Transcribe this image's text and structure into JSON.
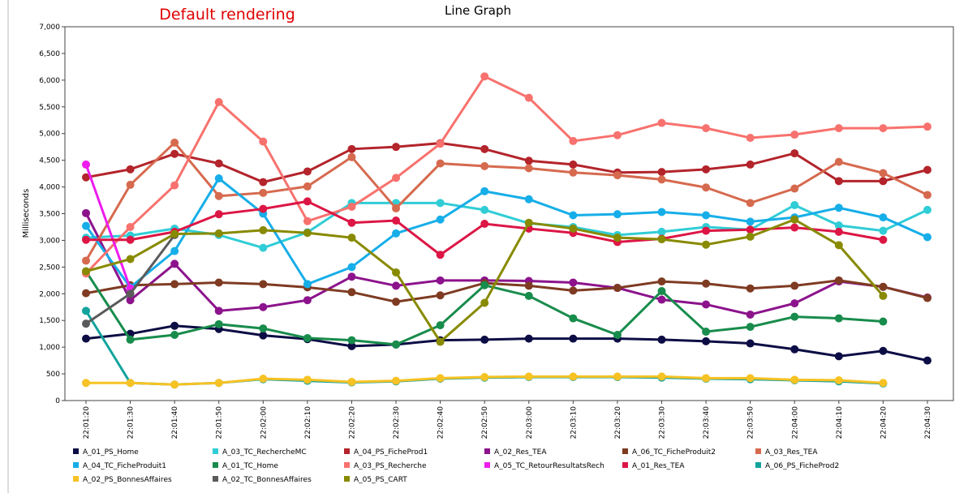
{
  "chart_data": {
    "type": "line",
    "title": "Line Graph",
    "annotation": "Default rendering",
    "y_label": "Milliseconds",
    "categories": [
      "22:01:20",
      "22:01:30",
      "22:01:40",
      "22:01:50",
      "22:02:00",
      "22:02:10",
      "22:02:20",
      "22:02:30",
      "22:02:40",
      "22:02:50",
      "22:03:00",
      "22:03:10",
      "22:03:20",
      "22:03:30",
      "22:03:40",
      "22:03:50",
      "22:04:00",
      "22:04:10",
      "22:04:20",
      "22:04:30"
    ],
    "ylim": [
      0,
      7000
    ],
    "yticks": [
      0,
      500,
      {
        "value": 1000,
        "label": "1,000"
      },
      {
        "value": 1500,
        "label": "1,500"
      },
      {
        "value": 2000,
        "label": "2,000"
      },
      {
        "value": 2500,
        "label": "2,500"
      },
      {
        "value": 3000,
        "label": "3,000"
      },
      {
        "value": 3500,
        "label": "3,500"
      },
      {
        "value": 4000,
        "label": "4,000"
      },
      {
        "value": 4500,
        "label": "4,500"
      },
      {
        "value": 5000,
        "label": "5,000"
      },
      {
        "value": 5500,
        "label": "5,500"
      },
      {
        "value": 6000,
        "label": "6,000"
      },
      {
        "value": 6500,
        "label": "6,500"
      },
      {
        "value": 7000,
        "label": "7,000"
      }
    ],
    "grid": false,
    "series": [
      {
        "name": "A_01_PS_Home",
        "color": "#0d0d45",
        "values": [
          1160,
          1250,
          1400,
          1340,
          1220,
          1150,
          1020,
          1050,
          1130,
          1140,
          1160,
          1160,
          1160,
          1140,
          1110,
          1070,
          960,
          830,
          930,
          750
        ]
      },
      {
        "name": "A_03_TC_RechercheMC",
        "color": "#30cdd6",
        "values": [
          3050,
          3090,
          3220,
          3100,
          2860,
          3150,
          3700,
          3700,
          3700,
          3570,
          3320,
          3250,
          3100,
          3160,
          3250,
          3200,
          3660,
          3280,
          3180,
          3570
        ]
      },
      {
        "name": "A_04_PS_FicheProd1",
        "color": "#b3242b",
        "values": [
          4180,
          4330,
          4620,
          4440,
          4090,
          4290,
          4710,
          4750,
          4820,
          4710,
          4490,
          4420,
          4270,
          4280,
          4330,
          4420,
          4630,
          4110,
          4110,
          4320
        ]
      },
      {
        "name": "A_02_Res_TEA",
        "color": "#8c138c",
        "values": [
          3510,
          1880,
          2560,
          1680,
          1750,
          1880,
          2320,
          2150,
          2250,
          2250,
          2240,
          2210,
          2110,
          1890,
          1800,
          1610,
          1820,
          2230,
          2130,
          1930
        ]
      },
      {
        "name": "A_06_TC_FicheProduit2",
        "color": "#7e3b22",
        "values": [
          2010,
          2160,
          2180,
          2210,
          2180,
          2120,
          2030,
          1850,
          1970,
          2200,
          2150,
          2060,
          2110,
          2230,
          2190,
          2100,
          2150,
          2250,
          2130,
          1920
        ]
      },
      {
        "name": "A_03_Res_TEA",
        "color": "#d66a4f",
        "values": [
          2620,
          4040,
          4830,
          3830,
          3890,
          4010,
          4560,
          3600,
          4440,
          4390,
          4350,
          4270,
          4220,
          4140,
          3990,
          3700,
          3970,
          4470,
          4260,
          3850
        ]
      },
      {
        "name": "A_04_TC_FicheProduit1",
        "color": "#16aee8",
        "values": [
          3270,
          2120,
          2800,
          4160,
          3500,
          2180,
          2500,
          3130,
          3390,
          3920,
          3770,
          3470,
          3490,
          3530,
          3470,
          3350,
          3430,
          3610,
          3430,
          3060
        ]
      },
      {
        "name": "A_01_TC_Home",
        "color": "#188c4c",
        "values": [
          2420,
          1140,
          1230,
          1430,
          1350,
          1170,
          1130,
          1050,
          1410,
          2160,
          1960,
          1540,
          1230,
          2050,
          1290,
          1380,
          1570,
          1540,
          1480,
          null
        ]
      },
      {
        "name": "A_03_PS_Recherche",
        "color": "#f7726e",
        "values": [
          2380,
          3250,
          4030,
          5590,
          4850,
          3360,
          3630,
          4170,
          4810,
          6070,
          5670,
          4860,
          4970,
          5200,
          5100,
          4920,
          4980,
          5100,
          5100,
          5130
        ]
      },
      {
        "name": "A_05_TC_RetourResultatsRech",
        "color": "#ee1cee",
        "values": [
          4420,
          2100,
          null,
          null,
          null,
          null,
          null,
          null,
          null,
          null,
          null,
          null,
          null,
          null,
          null,
          null,
          null,
          null,
          null,
          null
        ]
      },
      {
        "name": "A_01_Res_TEA",
        "color": "#dc1645",
        "values": [
          3010,
          3010,
          3160,
          3490,
          3590,
          3730,
          3330,
          3370,
          2730,
          3310,
          3220,
          3140,
          2970,
          3030,
          3180,
          3200,
          3240,
          3160,
          3010,
          null
        ]
      },
      {
        "name": "A_06_PS_FicheProd2",
        "color": "#12a39c",
        "values": [
          1680,
          330,
          300,
          330,
          400,
          370,
          340,
          360,
          410,
          430,
          440,
          440,
          440,
          430,
          410,
          400,
          380,
          360,
          320,
          null
        ]
      },
      {
        "name": "A_02_PS_BonnesAffaires",
        "color": "#f7c224",
        "values": [
          330,
          330,
          300,
          330,
          410,
          390,
          350,
          370,
          420,
          440,
          450,
          450,
          450,
          450,
          420,
          420,
          390,
          380,
          330,
          null
        ]
      },
      {
        "name": "A_02_TC_BonnesAffaires",
        "color": "#5a5a5a",
        "values": [
          1440,
          2000,
          3100,
          null,
          null,
          null,
          null,
          null,
          null,
          null,
          null,
          null,
          null,
          null,
          null,
          null,
          null,
          null,
          null,
          null
        ]
      },
      {
        "name": "A_05_PS_CART",
        "color": "#888a00",
        "values": [
          2420,
          2650,
          3120,
          3130,
          3190,
          3140,
          3050,
          2400,
          1100,
          1830,
          3330,
          3220,
          3050,
          3020,
          2920,
          3070,
          3390,
          2910,
          1960,
          null
        ]
      }
    ]
  }
}
